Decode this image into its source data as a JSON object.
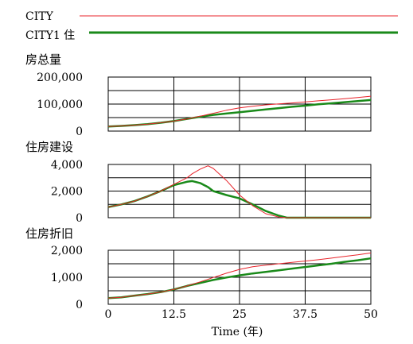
{
  "legend": [
    {
      "label": "CITY",
      "color": "#e8242b",
      "line": "thin"
    },
    {
      "label": "CITY1 住",
      "color": "#1a8a1a",
      "line": "thick"
    }
  ],
  "x_axis": {
    "label": "Time (年)",
    "ticks": [
      "0",
      "12.5",
      "25",
      "37.5",
      "50"
    ],
    "range": [
      0,
      50
    ]
  },
  "chart_data": [
    {
      "type": "line",
      "title": "房总量",
      "ylim": [
        0,
        200000
      ],
      "ytick_values": [
        0,
        100000,
        200000
      ],
      "ytick_labels": [
        "0",
        "100,000",
        "200,000"
      ],
      "x": [
        0,
        2.5,
        5,
        7.5,
        10,
        12.5,
        15,
        17.5,
        20,
        22.5,
        25,
        27.5,
        30,
        32.5,
        35,
        37.5,
        40,
        42.5,
        45,
        47.5,
        50
      ],
      "series": [
        {
          "name": "CITY",
          "color": "#e8242b",
          "values": [
            17000,
            19000,
            22000,
            26000,
            31000,
            37000,
            45000,
            55000,
            66000,
            77000,
            86000,
            92000,
            97000,
            101000,
            104000,
            108000,
            112000,
            116000,
            120000,
            124000,
            129000
          ]
        },
        {
          "name": "CITY1 住",
          "color": "#1a8a1a",
          "values": [
            17000,
            19000,
            22000,
            26000,
            31000,
            37000,
            45000,
            53000,
            60000,
            65000,
            70000,
            75000,
            80000,
            85000,
            90000,
            94000,
            99000,
            103000,
            107000,
            111000,
            115000
          ]
        }
      ]
    },
    {
      "type": "line",
      "title": "住房建设",
      "ylim": [
        0,
        4000
      ],
      "ytick_values": [
        0,
        2000,
        4000
      ],
      "ytick_labels": [
        "0",
        "2,000",
        "4,000"
      ],
      "x": [
        0,
        2.5,
        5,
        7.5,
        10,
        12.5,
        15,
        16,
        17.5,
        19,
        20,
        22.5,
        25,
        27.5,
        30,
        32.5,
        34,
        35,
        37.5,
        40,
        42.5,
        45,
        47.5,
        50
      ],
      "series": [
        {
          "name": "CITY",
          "color": "#e8242b",
          "values": [
            800,
            1000,
            1250,
            1600,
            2000,
            2500,
            3000,
            3300,
            3650,
            3900,
            3700,
            2800,
            1700,
            900,
            300,
            50,
            0,
            0,
            0,
            0,
            0,
            0,
            0,
            0
          ]
        },
        {
          "name": "CITY1 住",
          "color": "#1a8a1a",
          "values": [
            800,
            1000,
            1250,
            1600,
            2000,
            2450,
            2700,
            2750,
            2600,
            2300,
            2000,
            1700,
            1450,
            1000,
            500,
            150,
            0,
            0,
            0,
            0,
            0,
            0,
            0,
            0
          ]
        }
      ]
    },
    {
      "type": "line",
      "title": "住房折旧",
      "ylim": [
        0,
        2000
      ],
      "ytick_values": [
        0,
        1000,
        2000
      ],
      "ytick_labels": [
        "0",
        "1,000",
        "2,000"
      ],
      "x": [
        0,
        2.5,
        5,
        7.5,
        10,
        12.5,
        15,
        17.5,
        20,
        22.5,
        25,
        27.5,
        30,
        32.5,
        35,
        37.5,
        40,
        42.5,
        45,
        47.5,
        50
      ],
      "series": [
        {
          "name": "CITY",
          "color": "#e8242b",
          "values": [
            230,
            260,
            320,
            380,
            450,
            550,
            680,
            830,
            990,
            1150,
            1290,
            1390,
            1450,
            1500,
            1550,
            1600,
            1650,
            1710,
            1770,
            1830,
            1900
          ]
        },
        {
          "name": "CITY1 住",
          "color": "#1a8a1a",
          "values": [
            230,
            260,
            320,
            380,
            450,
            550,
            680,
            790,
            900,
            990,
            1070,
            1140,
            1200,
            1260,
            1320,
            1380,
            1440,
            1500,
            1570,
            1630,
            1700
          ]
        }
      ]
    }
  ]
}
